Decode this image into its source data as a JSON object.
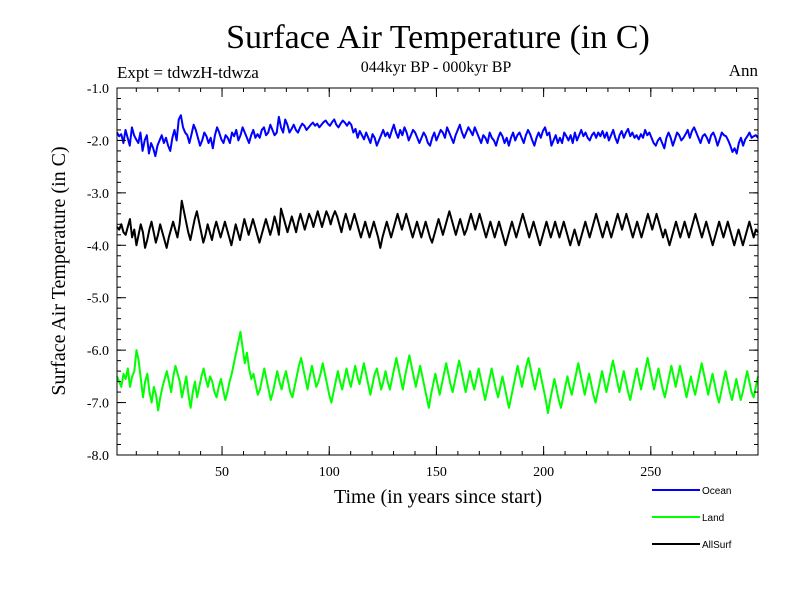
{
  "title": "Surface Air Temperature (in C)",
  "subtitle": "044kyr BP - 000kyr BP",
  "expt_label": "Expt = tdwzH-tdwza",
  "period_label": "Ann",
  "chart_data": {
    "type": "line",
    "xlabel": "Time (in years since start)",
    "ylabel": "Surface Air Temperature (in C)",
    "xlim": [
      1,
      300
    ],
    "ylim": [
      -8.0,
      -1.0
    ],
    "xticks": [
      50,
      100,
      150,
      200,
      250
    ],
    "yticks": [
      -8.0,
      -7.0,
      -6.0,
      -5.0,
      -4.0,
      -3.0,
      -2.0,
      -1.0
    ],
    "grid": false,
    "legend_position": "bottom-right",
    "samples": 300,
    "series": [
      {
        "name": "Ocean",
        "color": "#0000ff",
        "mean": -1.95,
        "values": [
          -1.85,
          -1.92,
          -1.88,
          -2.05,
          -1.8,
          -1.95,
          -2.1,
          -1.75,
          -1.9,
          -1.98,
          -2.05,
          -1.85,
          -2.2,
          -2.0,
          -1.9,
          -2.25,
          -2.05,
          -2.15,
          -2.3,
          -2.1,
          -2.0,
          -1.9,
          -2.05,
          -1.95,
          -2.1,
          -2.2,
          -1.95,
          -1.8,
          -2.0,
          -1.6,
          -1.52,
          -1.75,
          -1.85,
          -1.9,
          -2.05,
          -1.88,
          -1.7,
          -1.8,
          -1.95,
          -2.1,
          -2.0,
          -1.85,
          -1.92,
          -2.05,
          -1.95,
          -2.15,
          -1.9,
          -1.75,
          -1.85,
          -1.98,
          -2.05,
          -1.9,
          -1.95,
          -2.05,
          -1.85,
          -1.92,
          -1.8,
          -2.0,
          -1.9,
          -1.75,
          -1.85,
          -1.95,
          -2.05,
          -1.9,
          -1.8,
          -1.95,
          -1.88,
          -1.95,
          -1.8,
          -1.75,
          -1.9,
          -1.85,
          -1.7,
          -1.8,
          -1.9,
          -1.85,
          -1.55,
          -1.75,
          -1.85,
          -1.6,
          -1.7,
          -1.85,
          -1.78,
          -1.7,
          -1.8,
          -1.85,
          -1.75,
          -1.68,
          -1.72,
          -1.8,
          -1.75,
          -1.7,
          -1.66,
          -1.72,
          -1.68,
          -1.75,
          -1.7,
          -1.65,
          -1.62,
          -1.68,
          -1.72,
          -1.65,
          -1.6,
          -1.7,
          -1.75,
          -1.68,
          -1.62,
          -1.66,
          -1.72,
          -1.65,
          -1.7,
          -1.85,
          -1.78,
          -1.95,
          -1.82,
          -1.9,
          -1.98,
          -1.85,
          -1.95,
          -2.05,
          -1.88,
          -1.95,
          -2.1,
          -2.0,
          -1.9,
          -1.8,
          -1.92,
          -1.85,
          -1.95,
          -1.82,
          -1.7,
          -1.85,
          -1.95,
          -1.8,
          -1.9,
          -1.75,
          -1.85,
          -2.0,
          -1.9,
          -1.8,
          -1.85,
          -1.95,
          -2.05,
          -1.95,
          -1.85,
          -1.92,
          -2.05,
          -2.1,
          -1.95,
          -1.85,
          -2.0,
          -1.9,
          -1.8,
          -1.85,
          -1.95,
          -1.75,
          -1.85,
          -1.95,
          -2.05,
          -1.9,
          -1.8,
          -1.7,
          -1.85,
          -1.95,
          -1.85,
          -1.75,
          -1.82,
          -1.9,
          -1.75,
          -1.85,
          -1.95,
          -2.05,
          -1.9,
          -1.95,
          -2.05,
          -1.85,
          -1.95,
          -2.0,
          -2.1,
          -1.95,
          -1.85,
          -1.92,
          -2.05,
          -1.95,
          -2.1,
          -1.95,
          -1.85,
          -2.0,
          -1.9,
          -1.85,
          -1.95,
          -2.05,
          -1.9,
          -1.8,
          -1.88,
          -2.0,
          -2.1,
          -1.95,
          -1.85,
          -1.95,
          -1.82,
          -1.75,
          -1.9,
          -1.85,
          -2.1,
          -2.0,
          -1.9,
          -2.05,
          -1.95,
          -2.05,
          -1.85,
          -1.92,
          -2.0,
          -1.9,
          -2.05,
          -1.85,
          -2.0,
          -1.9,
          -1.8,
          -1.92,
          -1.85,
          -1.95,
          -2.0,
          -1.9,
          -1.85,
          -1.95,
          -1.85,
          -1.92,
          -1.82,
          -1.95,
          -1.85,
          -2.0,
          -1.9,
          -1.8,
          -1.95,
          -2.05,
          -1.9,
          -1.82,
          -1.95,
          -1.85,
          -1.78,
          -1.92,
          -1.85,
          -1.95,
          -1.9,
          -1.98,
          -1.88,
          -1.95,
          -1.8,
          -1.9,
          -1.85,
          -1.95,
          -2.05,
          -2.1,
          -2.0,
          -1.95,
          -2.05,
          -2.15,
          -1.95,
          -1.85,
          -1.95,
          -2.1,
          -1.98,
          -1.85,
          -1.9,
          -2.0,
          -1.95,
          -1.88,
          -1.8,
          -1.95,
          -1.82,
          -1.75,
          -1.85,
          -1.95,
          -2.05,
          -1.92,
          -1.88,
          -1.95,
          -2.05,
          -1.9,
          -1.85,
          -1.95,
          -2.1,
          -1.98,
          -1.85,
          -1.9,
          -1.92,
          -2.0,
          -2.1,
          -2.22,
          -2.15,
          -2.25,
          -2.05,
          -1.95,
          -2.1,
          -1.98,
          -1.92,
          -1.85,
          -1.95,
          -1.92,
          -1.9,
          -1.95
        ]
      },
      {
        "name": "Land",
        "color": "#00ff00",
        "mean": -6.6,
        "values": [
          -6.5,
          -6.6,
          -6.7,
          -6.45,
          -6.55,
          -6.35,
          -6.7,
          -6.5,
          -6.4,
          -6.0,
          -6.2,
          -6.55,
          -6.9,
          -6.6,
          -6.45,
          -6.8,
          -7.0,
          -6.7,
          -6.85,
          -7.15,
          -6.9,
          -6.7,
          -6.55,
          -6.4,
          -6.6,
          -6.8,
          -6.5,
          -6.3,
          -6.45,
          -6.6,
          -6.9,
          -6.7,
          -6.5,
          -6.85,
          -7.1,
          -6.8,
          -6.6,
          -6.9,
          -6.7,
          -6.5,
          -6.35,
          -6.55,
          -6.7,
          -6.5,
          -6.6,
          -6.8,
          -6.9,
          -6.7,
          -6.55,
          -6.75,
          -6.95,
          -6.8,
          -6.6,
          -6.45,
          -6.25,
          -6.05,
          -5.85,
          -5.65,
          -5.95,
          -6.25,
          -6.05,
          -6.35,
          -6.55,
          -6.45,
          -6.65,
          -6.85,
          -6.75,
          -6.55,
          -6.35,
          -6.55,
          -6.75,
          -6.95,
          -6.8,
          -6.6,
          -6.4,
          -6.6,
          -6.75,
          -6.55,
          -6.4,
          -6.6,
          -6.8,
          -6.9,
          -6.7,
          -6.5,
          -6.3,
          -6.15,
          -6.35,
          -6.55,
          -6.75,
          -6.5,
          -6.3,
          -6.5,
          -6.7,
          -6.6,
          -6.45,
          -6.25,
          -6.45,
          -6.65,
          -6.85,
          -7.0,
          -6.8,
          -6.6,
          -6.4,
          -6.6,
          -6.75,
          -6.55,
          -6.35,
          -6.55,
          -6.7,
          -6.5,
          -6.3,
          -6.5,
          -6.65,
          -6.45,
          -6.25,
          -6.45,
          -6.65,
          -6.85,
          -6.65,
          -6.45,
          -6.35,
          -6.55,
          -6.75,
          -6.6,
          -6.4,
          -6.6,
          -6.75,
          -6.55,
          -6.35,
          -6.15,
          -6.35,
          -6.55,
          -6.75,
          -6.5,
          -6.3,
          -6.1,
          -6.3,
          -6.5,
          -6.7,
          -6.5,
          -6.3,
          -6.5,
          -6.7,
          -6.9,
          -7.1,
          -6.85,
          -6.65,
          -6.45,
          -6.65,
          -6.85,
          -6.65,
          -6.45,
          -6.25,
          -6.45,
          -6.65,
          -6.8,
          -6.6,
          -6.4,
          -6.2,
          -6.4,
          -6.6,
          -6.8,
          -6.6,
          -6.4,
          -6.6,
          -6.75,
          -6.55,
          -6.35,
          -6.55,
          -6.75,
          -6.95,
          -6.75,
          -6.55,
          -6.35,
          -6.55,
          -6.75,
          -6.9,
          -6.7,
          -6.5,
          -6.7,
          -6.9,
          -7.1,
          -6.9,
          -6.7,
          -6.5,
          -6.3,
          -6.5,
          -6.7,
          -6.5,
          -6.3,
          -6.15,
          -6.35,
          -6.55,
          -6.75,
          -6.55,
          -6.35,
          -6.55,
          -6.75,
          -6.95,
          -7.2,
          -6.95,
          -6.75,
          -6.55,
          -6.75,
          -6.95,
          -7.1,
          -6.9,
          -6.7,
          -6.5,
          -6.7,
          -6.85,
          -6.65,
          -6.45,
          -6.25,
          -6.45,
          -6.65,
          -6.85,
          -6.65,
          -6.45,
          -6.65,
          -6.85,
          -7.0,
          -6.8,
          -6.6,
          -6.4,
          -6.6,
          -6.8,
          -6.6,
          -6.4,
          -6.2,
          -6.4,
          -6.6,
          -6.8,
          -6.6,
          -6.4,
          -6.6,
          -6.8,
          -6.95,
          -6.75,
          -6.55,
          -6.35,
          -6.55,
          -6.75,
          -6.55,
          -6.35,
          -6.15,
          -6.35,
          -6.55,
          -6.75,
          -6.55,
          -6.35,
          -6.55,
          -6.75,
          -6.9,
          -6.7,
          -6.5,
          -6.3,
          -6.5,
          -6.7,
          -6.5,
          -6.3,
          -6.5,
          -6.7,
          -6.9,
          -6.7,
          -6.5,
          -6.7,
          -6.85,
          -6.65,
          -6.45,
          -6.25,
          -6.45,
          -6.65,
          -6.85,
          -6.65,
          -6.45,
          -6.65,
          -6.85,
          -7.0,
          -6.8,
          -6.6,
          -6.4,
          -6.6,
          -6.8,
          -6.95,
          -6.75,
          -6.55,
          -6.75,
          -6.95,
          -6.8,
          -6.6,
          -6.4,
          -6.6,
          -6.8,
          -6.9,
          -6.7,
          -6.5
        ]
      },
      {
        "name": "AllSurf",
        "color": "#000000",
        "mean": -3.7,
        "values": [
          -3.65,
          -3.7,
          -3.6,
          -3.75,
          -3.8,
          -3.65,
          -3.5,
          -3.85,
          -3.7,
          -4.0,
          -3.8,
          -3.6,
          -3.75,
          -4.05,
          -3.9,
          -3.7,
          -3.55,
          -3.75,
          -3.95,
          -3.8,
          -3.6,
          -3.75,
          -3.9,
          -4.05,
          -3.85,
          -3.7,
          -3.55,
          -3.7,
          -3.85,
          -3.6,
          -3.15,
          -3.35,
          -3.55,
          -3.75,
          -3.9,
          -3.7,
          -3.5,
          -3.35,
          -3.55,
          -3.75,
          -3.95,
          -3.8,
          -3.6,
          -3.75,
          -3.9,
          -3.7,
          -3.55,
          -3.7,
          -3.85,
          -3.7,
          -3.55,
          -3.7,
          -3.85,
          -4.0,
          -3.8,
          -3.6,
          -3.75,
          -3.9,
          -3.7,
          -3.5,
          -3.65,
          -3.8,
          -3.65,
          -3.5,
          -3.65,
          -3.8,
          -3.95,
          -3.8,
          -3.65,
          -3.5,
          -3.65,
          -3.8,
          -3.65,
          -3.45,
          -3.6,
          -3.8,
          -3.3,
          -3.45,
          -3.6,
          -3.75,
          -3.6,
          -3.45,
          -3.6,
          -3.75,
          -3.55,
          -3.4,
          -3.55,
          -3.7,
          -3.55,
          -3.4,
          -3.5,
          -3.65,
          -3.5,
          -3.35,
          -3.5,
          -3.65,
          -3.5,
          -3.35,
          -3.45,
          -3.6,
          -3.45,
          -3.35,
          -3.45,
          -3.6,
          -3.75,
          -3.55,
          -3.4,
          -3.55,
          -3.7,
          -3.55,
          -3.4,
          -3.55,
          -3.7,
          -3.85,
          -3.7,
          -3.55,
          -3.7,
          -3.85,
          -3.7,
          -3.55,
          -3.7,
          -3.85,
          -4.05,
          -3.85,
          -3.7,
          -3.55,
          -3.7,
          -3.85,
          -3.7,
          -3.55,
          -3.4,
          -3.55,
          -3.7,
          -3.55,
          -3.4,
          -3.55,
          -3.7,
          -3.85,
          -3.7,
          -3.55,
          -3.7,
          -3.85,
          -3.7,
          -3.55,
          -3.7,
          -3.85,
          -3.95,
          -3.8,
          -3.65,
          -3.5,
          -3.65,
          -3.8,
          -3.65,
          -3.5,
          -3.35,
          -3.5,
          -3.65,
          -3.8,
          -3.65,
          -3.5,
          -3.65,
          -3.8,
          -3.7,
          -3.55,
          -3.4,
          -3.55,
          -3.7,
          -3.55,
          -3.4,
          -3.55,
          -3.7,
          -3.85,
          -3.7,
          -3.55,
          -3.7,
          -3.85,
          -3.7,
          -3.55,
          -3.7,
          -3.85,
          -4.0,
          -3.85,
          -3.7,
          -3.55,
          -3.7,
          -3.85,
          -3.7,
          -3.55,
          -3.4,
          -3.55,
          -3.7,
          -3.85,
          -3.7,
          -3.55,
          -3.7,
          -3.85,
          -4.0,
          -3.85,
          -3.7,
          -3.55,
          -3.7,
          -3.85,
          -3.7,
          -3.55,
          -3.7,
          -3.85,
          -3.7,
          -3.55,
          -3.7,
          -3.85,
          -4.0,
          -3.85,
          -3.7,
          -3.85,
          -4.0,
          -3.85,
          -3.7,
          -3.55,
          -3.7,
          -3.85,
          -3.7,
          -3.55,
          -3.4,
          -3.55,
          -3.7,
          -3.85,
          -3.7,
          -3.55,
          -3.7,
          -3.85,
          -3.7,
          -3.55,
          -3.4,
          -3.55,
          -3.7,
          -3.55,
          -3.4,
          -3.55,
          -3.7,
          -3.85,
          -3.7,
          -3.55,
          -3.7,
          -3.85,
          -3.7,
          -3.55,
          -3.4,
          -3.55,
          -3.7,
          -3.55,
          -3.4,
          -3.55,
          -3.7,
          -3.85,
          -3.7,
          -3.85,
          -4.0,
          -3.85,
          -3.7,
          -3.55,
          -3.7,
          -3.85,
          -3.7,
          -3.55,
          -3.7,
          -3.85,
          -3.7,
          -3.55,
          -3.4,
          -3.55,
          -3.7,
          -3.85,
          -3.7,
          -3.55,
          -3.7,
          -3.85,
          -4.0,
          -3.85,
          -3.7,
          -3.55,
          -3.7,
          -3.85,
          -3.7,
          -3.55,
          -3.7,
          -3.85,
          -4.0,
          -3.85,
          -3.7,
          -3.85,
          -4.0,
          -3.85,
          -3.7,
          -3.55,
          -3.7,
          -3.85,
          -3.7,
          -3.75
        ]
      }
    ]
  }
}
